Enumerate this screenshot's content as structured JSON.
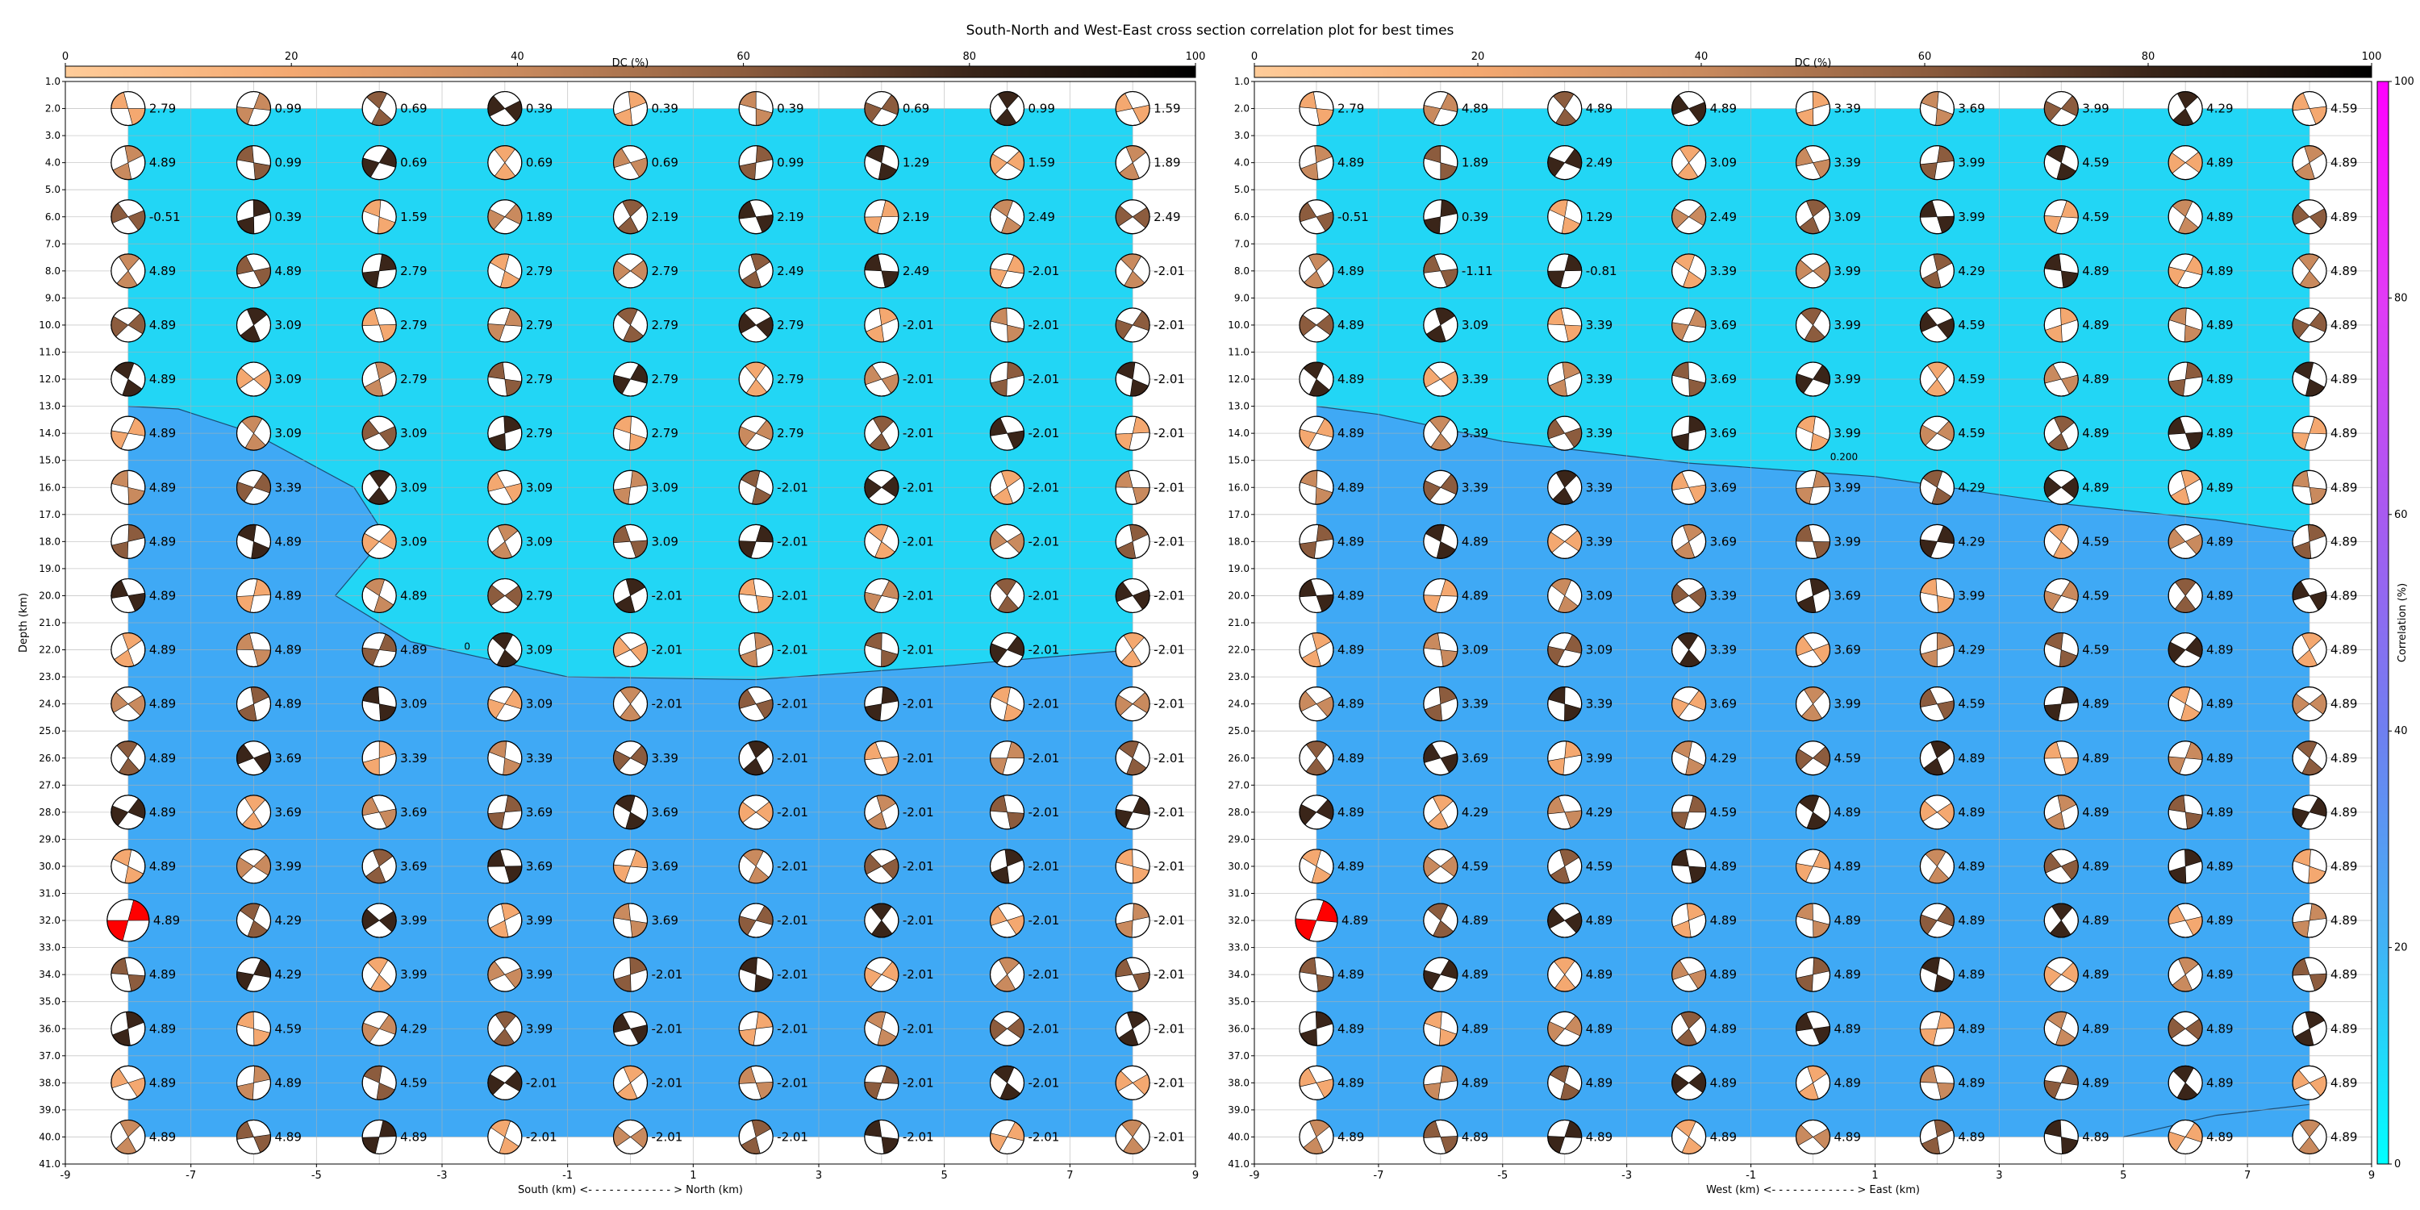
{
  "chart_data": {
    "type": "scatter",
    "title": "South-North and West-East cross section correlation plot for best times",
    "colors": {
      "background_low": "#22d6f5",
      "background_high": "#3fa9f5",
      "best_highlight": "#ff0000",
      "beach_dark": "#6b4630"
    },
    "dc_colorbar": {
      "label": "DC (%)",
      "ticks": [
        0,
        20,
        40,
        60,
        80,
        100
      ],
      "colors": [
        "#ffcc99",
        "#f4a870",
        "#c98a5e",
        "#8c5c3e",
        "#3a2519",
        "#000000"
      ]
    },
    "correlation_colorbar": {
      "label": "Correlation (%)",
      "ticks": [
        0,
        20,
        40,
        60,
        80,
        100
      ],
      "colors": [
        "#00ffff",
        "#40b4f5",
        "#6f7ff0",
        "#a85af0",
        "#e23af6",
        "#ff00ff"
      ]
    },
    "panels": [
      {
        "xlabel": "South (km) <- - - - - - - - - - - - > North (km)",
        "ylabel": "Depth (km)",
        "xlim": [
          -9,
          9
        ],
        "ylim": [
          41,
          1
        ],
        "xticks": [
          "-9",
          "-7",
          "-5",
          "-3",
          "-1",
          "1",
          "3",
          "5",
          "7",
          "9"
        ],
        "contour_label": "0",
        "x_positions": [
          -8,
          -6,
          -4,
          -2,
          0,
          2,
          4,
          6,
          8
        ],
        "depths": [
          2,
          4,
          6,
          8,
          10,
          12,
          14,
          16,
          18,
          20,
          22,
          24,
          26,
          28,
          30,
          32,
          34,
          36,
          38,
          40
        ],
        "best": {
          "x": -8,
          "depth": 32
        },
        "labels": [
          [
            "2.79",
            "0.99",
            "0.69",
            "0.39",
            "0.39",
            "0.39",
            "0.69",
            "0.99",
            "1.59"
          ],
          [
            "4.89",
            "0.99",
            "0.69",
            "0.69",
            "0.69",
            "0.99",
            "1.29",
            "1.59",
            "1.89"
          ],
          [
            "-0.51",
            "0.39",
            "1.59",
            "1.89",
            "2.19",
            "2.19",
            "2.19",
            "2.49",
            "2.49"
          ],
          [
            "4.89",
            "4.89",
            "2.79",
            "2.79",
            "2.79",
            "2.49",
            "2.49",
            "-2.01",
            "-2.01"
          ],
          [
            "4.89",
            "3.09",
            "2.79",
            "2.79",
            "2.79",
            "2.79",
            "-2.01",
            "-2.01",
            "-2.01"
          ],
          [
            "4.89",
            "3.09",
            "2.79",
            "2.79",
            "2.79",
            "2.79",
            "-2.01",
            "-2.01",
            "-2.01"
          ],
          [
            "4.89",
            "3.09",
            "3.09",
            "2.79",
            "2.79",
            "2.79",
            "-2.01",
            "-2.01",
            "-2.01"
          ],
          [
            "4.89",
            "3.39",
            "3.09",
            "3.09",
            "3.09",
            "-2.01",
            "-2.01",
            "-2.01",
            "-2.01"
          ],
          [
            "4.89",
            "4.89",
            "3.09",
            "3.09",
            "3.09",
            "-2.01",
            "-2.01",
            "-2.01",
            "-2.01"
          ],
          [
            "4.89",
            "4.89",
            "4.89",
            "2.79",
            "-2.01",
            "-2.01",
            "-2.01",
            "-2.01",
            "-2.01"
          ],
          [
            "4.89",
            "4.89",
            "4.89",
            "3.09",
            "-2.01",
            "-2.01",
            "-2.01",
            "-2.01",
            "-2.01"
          ],
          [
            "4.89",
            "4.89",
            "3.09",
            "3.09",
            "-2.01",
            "-2.01",
            "-2.01",
            "-2.01",
            "-2.01"
          ],
          [
            "4.89",
            "3.69",
            "3.39",
            "3.39",
            "3.39",
            "-2.01",
            "-2.01",
            "-2.01",
            "-2.01"
          ],
          [
            "4.89",
            "3.69",
            "3.69",
            "3.69",
            "3.69",
            "-2.01",
            "-2.01",
            "-2.01",
            "-2.01"
          ],
          [
            "4.89",
            "3.99",
            "3.69",
            "3.69",
            "3.69",
            "-2.01",
            "-2.01",
            "-2.01",
            "-2.01"
          ],
          [
            "4.89",
            "4.29",
            "3.99",
            "3.99",
            "3.69",
            "-2.01",
            "-2.01",
            "-2.01",
            "-2.01"
          ],
          [
            "4.89",
            "4.29",
            "3.99",
            "3.99",
            "-2.01",
            "-2.01",
            "-2.01",
            "-2.01",
            "-2.01"
          ],
          [
            "4.89",
            "4.59",
            "4.29",
            "3.99",
            "-2.01",
            "-2.01",
            "-2.01",
            "-2.01",
            "-2.01"
          ],
          [
            "4.89",
            "4.89",
            "4.59",
            "-2.01",
            "-2.01",
            "-2.01",
            "-2.01",
            "-2.01",
            "-2.01"
          ],
          [
            "4.89",
            "4.89",
            "4.89",
            "-2.01",
            "-2.01",
            "-2.01",
            "-2.01",
            "-2.01",
            "-2.01"
          ]
        ]
      },
      {
        "xlabel": "West (km) <- - - - - - - - - - - - > East (km)",
        "ylabel": "",
        "xlim": [
          -9,
          9
        ],
        "ylim": [
          41,
          1
        ],
        "xticks": [
          "-9",
          "-7",
          "-5",
          "-3",
          "-1",
          "1",
          "3",
          "5",
          "7",
          "9"
        ],
        "contour_label": "0.200",
        "x_positions": [
          -8,
          -6,
          -4,
          -2,
          0,
          2,
          4,
          6,
          8
        ],
        "depths": [
          2,
          4,
          6,
          8,
          10,
          12,
          14,
          16,
          18,
          20,
          22,
          24,
          26,
          28,
          30,
          32,
          34,
          36,
          38,
          40
        ],
        "best": {
          "x": -8,
          "depth": 32
        },
        "labels": [
          [
            "2.79",
            "4.89",
            "4.89",
            "4.89",
            "3.39",
            "3.69",
            "3.99",
            "4.29",
            "4.59"
          ],
          [
            "4.89",
            "1.89",
            "2.49",
            "3.09",
            "3.39",
            "3.99",
            "4.59",
            "4.89",
            "4.89"
          ],
          [
            "-0.51",
            "0.39",
            "1.29",
            "2.49",
            "3.09",
            "3.99",
            "4.59",
            "4.89",
            "4.89"
          ],
          [
            "4.89",
            "-1.11",
            "-0.81",
            "3.39",
            "3.99",
            "4.29",
            "4.89",
            "4.89",
            "4.89"
          ],
          [
            "4.89",
            "3.09",
            "3.39",
            "3.69",
            "3.99",
            "4.59",
            "4.89",
            "4.89",
            "4.89"
          ],
          [
            "4.89",
            "3.39",
            "3.39",
            "3.69",
            "3.99",
            "4.59",
            "4.89",
            "4.89",
            "4.89"
          ],
          [
            "4.89",
            "3.39",
            "3.39",
            "3.69",
            "3.99",
            "4.59",
            "4.89",
            "4.89",
            "4.89"
          ],
          [
            "4.89",
            "3.39",
            "3.39",
            "3.69",
            "3.99",
            "4.29",
            "4.89",
            "4.89",
            "4.89"
          ],
          [
            "4.89",
            "4.89",
            "3.39",
            "3.69",
            "3.99",
            "4.29",
            "4.59",
            "4.89",
            "4.89"
          ],
          [
            "4.89",
            "4.89",
            "3.09",
            "3.39",
            "3.69",
            "3.99",
            "4.59",
            "4.89",
            "4.89"
          ],
          [
            "4.89",
            "3.09",
            "3.09",
            "3.39",
            "3.69",
            "4.29",
            "4.59",
            "4.89",
            "4.89"
          ],
          [
            "4.89",
            "3.39",
            "3.39",
            "3.69",
            "3.99",
            "4.59",
            "4.89",
            "4.89",
            "4.89"
          ],
          [
            "4.89",
            "3.69",
            "3.99",
            "4.29",
            "4.59",
            "4.89",
            "4.89",
            "4.89",
            "4.89"
          ],
          [
            "4.89",
            "4.29",
            "4.29",
            "4.59",
            "4.89",
            "4.89",
            "4.89",
            "4.89",
            "4.89"
          ],
          [
            "4.89",
            "4.59",
            "4.59",
            "4.89",
            "4.89",
            "4.89",
            "4.89",
            "4.89",
            "4.89"
          ],
          [
            "4.89",
            "4.89",
            "4.89",
            "4.89",
            "4.89",
            "4.89",
            "4.89",
            "4.89",
            "4.89"
          ],
          [
            "4.89",
            "4.89",
            "4.89",
            "4.89",
            "4.89",
            "4.89",
            "4.89",
            "4.89",
            "4.89"
          ],
          [
            "4.89",
            "4.89",
            "4.89",
            "4.89",
            "4.89",
            "4.89",
            "4.89",
            "4.89",
            "4.89"
          ],
          [
            "4.89",
            "4.89",
            "4.89",
            "4.89",
            "4.89",
            "4.89",
            "4.89",
            "4.89",
            "4.89"
          ],
          [
            "4.89",
            "4.89",
            "4.89",
            "4.89",
            "4.89",
            "4.89",
            "4.89",
            "4.89",
            "4.89"
          ]
        ]
      }
    ]
  }
}
